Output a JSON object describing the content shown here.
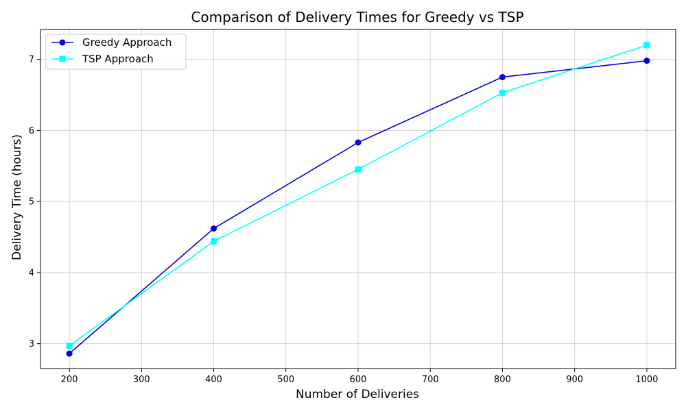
{
  "chart_data": {
    "type": "line",
    "title": "Comparison of Delivery Times for Greedy vs TSP",
    "xlabel": "Number of Deliveries",
    "ylabel": "Delivery Time (hours)",
    "x": [
      200,
      400,
      600,
      800,
      1000
    ],
    "xlim": [
      160,
      1040
    ],
    "ylim": [
      2.65,
      7.42
    ],
    "xticks": [
      200,
      300,
      400,
      500,
      600,
      700,
      800,
      900,
      1000
    ],
    "yticks": [
      3,
      4,
      5,
      6,
      7
    ],
    "grid": true,
    "legend_position": "top-left",
    "series": [
      {
        "name": "Greedy Approach",
        "values": [
          2.86,
          4.62,
          5.83,
          6.75,
          6.98
        ],
        "color": "#0000dd",
        "marker": "circle"
      },
      {
        "name": "TSP Approach",
        "values": [
          2.97,
          4.44,
          5.45,
          6.53,
          7.2
        ],
        "color": "#00ffff",
        "marker": "square"
      }
    ]
  }
}
